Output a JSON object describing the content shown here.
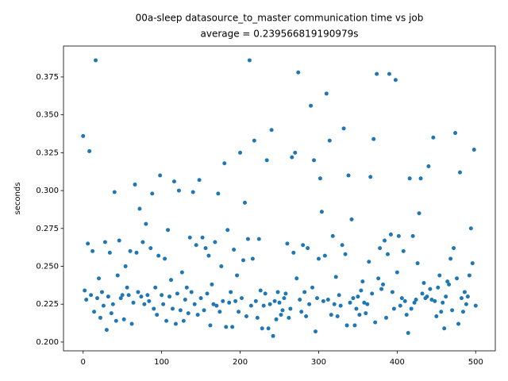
{
  "chart_data": {
    "type": "scatter",
    "title": "00a-sleep datasource_to_master communication time vs job",
    "subtitle": "average = 0.239566819190979s",
    "y_label": "seconds",
    "color": "#1f77b4",
    "xlim": [
      -25,
      525
    ],
    "ylim": [
      0.1942,
      0.3954
    ],
    "xticks": [
      0,
      100,
      200,
      300,
      400,
      500
    ],
    "yticks": [
      {
        "value": 0.2,
        "label": "0.200"
      },
      {
        "value": 0.225,
        "label": "0.225"
      },
      {
        "value": 0.25,
        "label": "0.250"
      },
      {
        "value": 0.275,
        "label": "0.275"
      },
      {
        "value": 0.3,
        "label": "0.300"
      },
      {
        "value": 0.325,
        "label": "0.325"
      },
      {
        "value": 0.35,
        "label": "0.350"
      },
      {
        "value": 0.375,
        "label": "0.375"
      }
    ],
    "x": [
      0,
      2,
      4,
      6,
      8,
      10,
      12,
      14,
      16,
      18,
      20,
      22,
      24,
      26,
      28,
      30,
      32,
      34,
      36,
      38,
      40,
      42,
      44,
      46,
      48,
      50,
      52,
      54,
      56,
      58,
      60,
      62,
      64,
      66,
      68,
      70,
      72,
      74,
      76,
      78,
      80,
      82,
      84,
      86,
      88,
      90,
      92,
      94,
      96,
      98,
      100,
      102,
      104,
      106,
      108,
      110,
      112,
      114,
      116,
      118,
      120,
      122,
      124,
      126,
      128,
      130,
      132,
      134,
      136,
      138,
      140,
      142,
      144,
      146,
      148,
      150,
      152,
      154,
      156,
      158,
      160,
      162,
      164,
      166,
      168,
      170,
      172,
      174,
      176,
      178,
      180,
      182,
      184,
      186,
      188,
      190,
      192,
      194,
      196,
      198,
      200,
      202,
      204,
      206,
      208,
      210,
      212,
      214,
      216,
      218,
      220,
      222,
      224,
      226,
      228,
      230,
      232,
      234,
      236,
      238,
      240,
      242,
      244,
      246,
      248,
      250,
      252,
      254,
      256,
      258,
      260,
      262,
      264,
      266,
      268,
      270,
      272,
      274,
      276,
      278,
      280,
      282,
      284,
      286,
      288,
      290,
      292,
      294,
      296,
      298,
      300,
      302,
      304,
      306,
      308,
      310,
      312,
      314,
      316,
      318,
      320,
      322,
      324,
      326,
      328,
      330,
      332,
      334,
      336,
      338,
      340,
      342,
      344,
      346,
      348,
      350,
      352,
      354,
      356,
      358,
      360,
      362,
      364,
      366,
      368,
      370,
      372,
      374,
      376,
      378,
      380,
      382,
      384,
      386,
      388,
      390,
      392,
      394,
      396,
      398,
      400,
      402,
      404,
      406,
      408,
      410,
      412,
      414,
      416,
      418,
      420,
      422,
      424,
      426,
      428,
      430,
      432,
      434,
      436,
      438,
      440,
      442,
      444,
      446,
      448,
      450,
      452,
      454,
      456,
      458,
      460,
      462,
      464,
      466,
      468,
      470,
      472,
      474,
      476,
      478,
      480,
      482,
      484,
      486,
      488,
      490,
      492,
      494,
      496,
      498,
      500
    ],
    "values": [
      0.336,
      0.234,
      0.228,
      0.265,
      0.326,
      0.231,
      0.26,
      0.22,
      0.386,
      0.229,
      0.242,
      0.216,
      0.233,
      0.224,
      0.266,
      0.208,
      0.23,
      0.259,
      0.219,
      0.225,
      0.299,
      0.214,
      0.244,
      0.267,
      0.229,
      0.231,
      0.215,
      0.25,
      0.236,
      0.231,
      0.26,
      0.212,
      0.226,
      0.304,
      0.259,
      0.233,
      0.288,
      0.23,
      0.266,
      0.225,
      0.278,
      0.231,
      0.227,
      0.262,
      0.298,
      0.222,
      0.236,
      0.218,
      0.257,
      0.31,
      0.231,
      0.225,
      0.255,
      0.214,
      0.274,
      0.23,
      0.241,
      0.222,
      0.306,
      0.212,
      0.232,
      0.3,
      0.221,
      0.246,
      0.214,
      0.228,
      0.236,
      0.219,
      0.269,
      0.233,
      0.299,
      0.225,
      0.264,
      0.218,
      0.307,
      0.229,
      0.269,
      0.221,
      0.262,
      0.232,
      0.257,
      0.211,
      0.238,
      0.225,
      0.266,
      0.224,
      0.298,
      0.22,
      0.25,
      0.227,
      0.318,
      0.21,
      0.274,
      0.226,
      0.233,
      0.21,
      0.261,
      0.227,
      0.244,
      0.22,
      0.325,
      0.229,
      0.254,
      0.292,
      0.217,
      0.268,
      0.386,
      0.224,
      0.255,
      0.333,
      0.227,
      0.216,
      0.268,
      0.234,
      0.209,
      0.224,
      0.232,
      0.32,
      0.209,
      0.225,
      0.34,
      0.204,
      0.227,
      0.215,
      0.233,
      0.226,
      0.218,
      0.221,
      0.229,
      0.232,
      0.265,
      0.216,
      0.222,
      0.322,
      0.259,
      0.325,
      0.242,
      0.378,
      0.228,
      0.22,
      0.264,
      0.233,
      0.217,
      0.262,
      0.225,
      0.356,
      0.236,
      0.32,
      0.207,
      0.229,
      0.255,
      0.308,
      0.286,
      0.227,
      0.257,
      0.364,
      0.228,
      0.333,
      0.218,
      0.27,
      0.225,
      0.243,
      0.217,
      0.231,
      0.224,
      0.264,
      0.341,
      0.258,
      0.211,
      0.31,
      0.226,
      0.281,
      0.229,
      0.211,
      0.222,
      0.23,
      0.218,
      0.234,
      0.24,
      0.226,
      0.219,
      0.225,
      0.253,
      0.309,
      0.232,
      0.334,
      0.213,
      0.377,
      0.242,
      0.262,
      0.235,
      0.238,
      0.267,
      0.216,
      0.258,
      0.377,
      0.271,
      0.233,
      0.222,
      0.373,
      0.246,
      0.27,
      0.224,
      0.229,
      0.26,
      0.227,
      0.218,
      0.206,
      0.308,
      0.222,
      0.27,
      0.226,
      0.228,
      0.252,
      0.285,
      0.308,
      0.232,
      0.239,
      0.229,
      0.23,
      0.316,
      0.235,
      0.228,
      0.335,
      0.227,
      0.217,
      0.236,
      0.244,
      0.22,
      0.226,
      0.209,
      0.23,
      0.24,
      0.238,
      0.255,
      0.221,
      0.262,
      0.338,
      0.242,
      0.212,
      0.312,
      0.229,
      0.22,
      0.233,
      0.225,
      0.23,
      0.244,
      0.275,
      0.252,
      0.327,
      0.224
    ]
  }
}
